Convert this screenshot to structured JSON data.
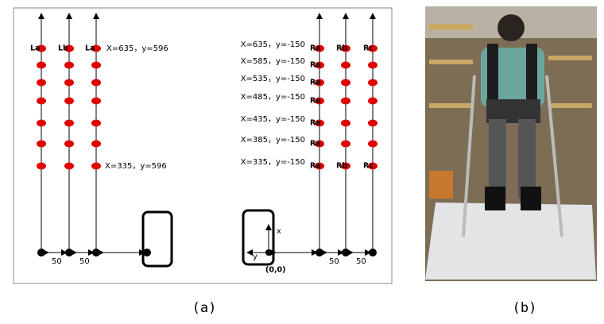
{
  "panel_a": {
    "left_labels": [
      "La",
      "Lb",
      "La"
    ],
    "left_annotations": [
      "X=635，y=596",
      "X=335，y=596"
    ],
    "right_row_labels": [
      [
        "Ra",
        "Rb",
        "Rc"
      ],
      [
        "Ra"
      ],
      [
        "Ra"
      ],
      [
        "Ra"
      ],
      [
        "Ra"
      ],
      [
        "Ra"
      ],
      [
        "Ra",
        "Rb",
        "Rc"
      ]
    ],
    "right_annotations": [
      "X=635，y=-150",
      "X=585，y=-150",
      "X=535，y=-150",
      "X=485，y=-150",
      "X=435，y=-150",
      "X=385，y=-150",
      "X=335，y=-150"
    ],
    "spacing_labels": [
      "50",
      "50",
      "50",
      "50"
    ],
    "axis_x": "x",
    "axis_y": "y",
    "origin_label": "(0,0)"
  },
  "captions": [
    "(a)",
    "(b)"
  ]
}
